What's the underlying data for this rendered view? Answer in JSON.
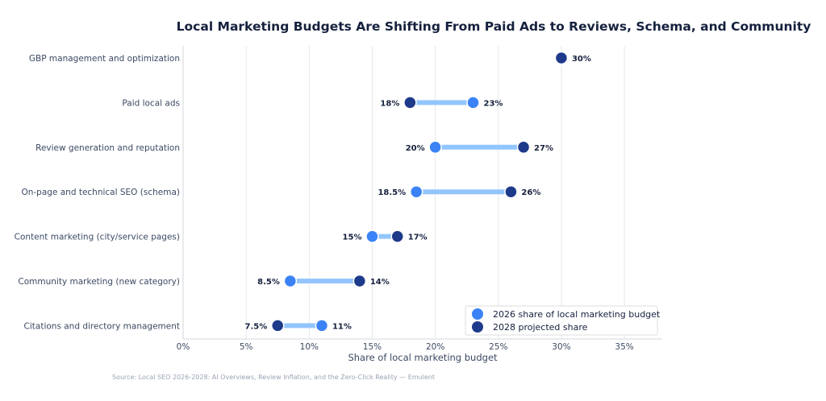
{
  "chart_data": {
    "type": "dumbbell",
    "title": "Local Marketing Budgets Are Shifting From Paid Ads to Reviews, Schema, and Community",
    "xlabel": "Share of local marketing budget",
    "ylabel": "",
    "xlim": [
      0,
      38
    ],
    "x_ticks": [
      "0%",
      "5%",
      "10%",
      "15%",
      "20%",
      "25%",
      "30%",
      "35%"
    ],
    "x_tick_values": [
      0,
      5,
      10,
      15,
      20,
      25,
      30,
      35
    ],
    "grid": true,
    "legend_position": "bottom-right",
    "categories": [
      "GBP management and optimization",
      "Paid local ads",
      "Review generation and reputation",
      "On-page and technical SEO (schema)",
      "Content marketing (city/service pages)",
      "Community marketing (new category)",
      "Citations and directory management"
    ],
    "series": [
      {
        "name": "2026 share of local marketing budget",
        "color": "#3b82f6",
        "values": [
          null,
          23,
          20,
          18.5,
          15,
          8.5,
          11
        ],
        "labels": [
          "",
          "23%",
          "20%",
          "18.5%",
          "15%",
          "8.5%",
          "11%"
        ]
      },
      {
        "name": "2028 projected share",
        "color": "#1e3a8a",
        "values": [
          30,
          18,
          27,
          26,
          17,
          14,
          7.5
        ],
        "labels": [
          "30%",
          "18%",
          "27%",
          "26%",
          "17%",
          "14%",
          "7.5%"
        ]
      }
    ],
    "connector_color": "#93c5fd",
    "source": "Source: Local SEO 2026-2028: AI Overviews, Review Inflation, and the Zero-Click Reality — Emulent"
  }
}
